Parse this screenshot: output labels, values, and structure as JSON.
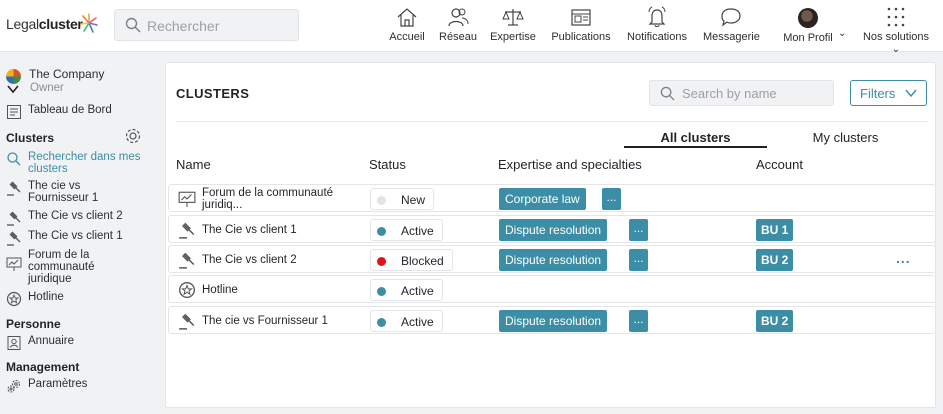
{
  "brand": {
    "light": "Legal",
    "bold": "cluster"
  },
  "search": {
    "placeholder": "Rechercher"
  },
  "nav": [
    {
      "label": "Accueil",
      "icon": "home-icon"
    },
    {
      "label": "Réseau",
      "icon": "users-icon"
    },
    {
      "label": "Expertise",
      "icon": "scale-icon"
    },
    {
      "label": "Publications",
      "icon": "newspaper-icon"
    },
    {
      "label": "Notifications",
      "icon": "bell-icon"
    },
    {
      "label": "Messagerie",
      "icon": "chat-icon"
    },
    {
      "label": "Mon Profil",
      "icon": "avatar"
    },
    {
      "label": "Nos solutions",
      "icon": "grid-icon"
    }
  ],
  "sidebar": {
    "company": "The Company",
    "role": "Owner",
    "dashboard": "Tableau de Bord",
    "clusters_heading": "Clusters",
    "search_link": "Rechercher dans mes clusters",
    "items": [
      {
        "label": "The cie vs Fournisseur 1"
      },
      {
        "label": "The Cie vs client 2"
      },
      {
        "label": "The Cie vs client 1"
      },
      {
        "label": "Forum de la communauté juridique"
      },
      {
        "label": "Hotline"
      }
    ],
    "person_heading": "Personne",
    "directory": "Annuaire",
    "management_heading": "Management",
    "settings": "Paramètres"
  },
  "panel": {
    "title": "CLUSTERS",
    "search_placeholder": "Search by name",
    "filters_label": "Filters",
    "tabs": {
      "all": "All clusters",
      "mine": "My clusters"
    },
    "columns": {
      "name": "Name",
      "status": "Status",
      "expertise": "Expertise and specialties",
      "account": "Account"
    },
    "rows": [
      {
        "name": "Forum de la communauté juridiq...",
        "status": "New",
        "status_color": "#e4e4e4",
        "expertise": "Corporate law",
        "more": "...",
        "account": ""
      },
      {
        "name": "The Cie vs client 1",
        "status": "Active",
        "status_color": "#3b8ea5",
        "expertise": "Dispute resolution",
        "more": "...",
        "account": "BU 1"
      },
      {
        "name": "The Cie vs client 2",
        "status": "Blocked",
        "status_color": "#e0121b",
        "expertise": "Dispute resolution",
        "more": "...",
        "account": "BU 2",
        "row_menu": "..."
      },
      {
        "name": "Hotline",
        "status": "Active",
        "status_color": "#3b8ea5",
        "expertise": "",
        "more": "",
        "account": ""
      },
      {
        "name": "The cie vs Fournisseur 1",
        "status": "Active",
        "status_color": "#3b8ea5",
        "expertise": "Dispute resolution",
        "more": "...",
        "account": "BU 2"
      }
    ]
  },
  "colors": {
    "accent": "#3b8ea5",
    "blocked": "#e0121b",
    "new": "#e4e4e4"
  }
}
